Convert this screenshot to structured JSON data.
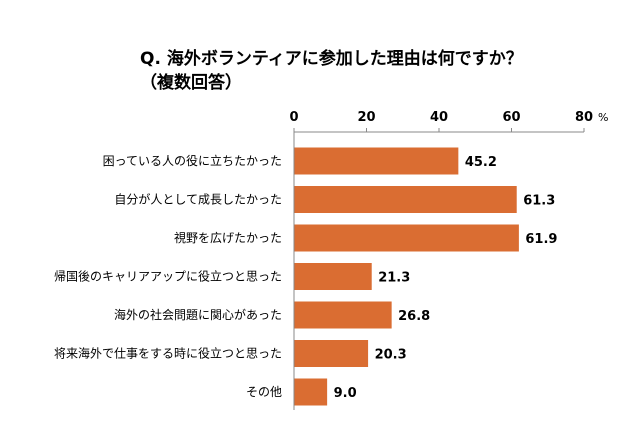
{
  "chart_data": {
    "type": "bar",
    "orientation": "horizontal",
    "title": "Q. 海外ボランティアに参加した理由は何ですか？",
    "subtitle": "（複数回答）",
    "unit": "%",
    "xlim": [
      0,
      80
    ],
    "ticks": [
      "0",
      "20",
      "40",
      "60",
      "80"
    ],
    "grid": false,
    "color": "#DA6D32",
    "categories": [
      "困っている人の役に立ちたかった",
      "自分が人として成長したかった",
      "視野を広げたかった",
      "帰国後のキャリアアップに役立つと思った",
      "海外の社会問題に関心があった",
      "将来海外で仕事をする時に役立つと思った",
      "その他"
    ],
    "values": [
      45.2,
      61.3,
      61.9,
      21.3,
      26.8,
      20.3,
      9.0
    ],
    "labels": [
      "45.2",
      "61.3",
      "61.9",
      "21.3",
      "26.8",
      "20.3",
      "9.0"
    ]
  }
}
